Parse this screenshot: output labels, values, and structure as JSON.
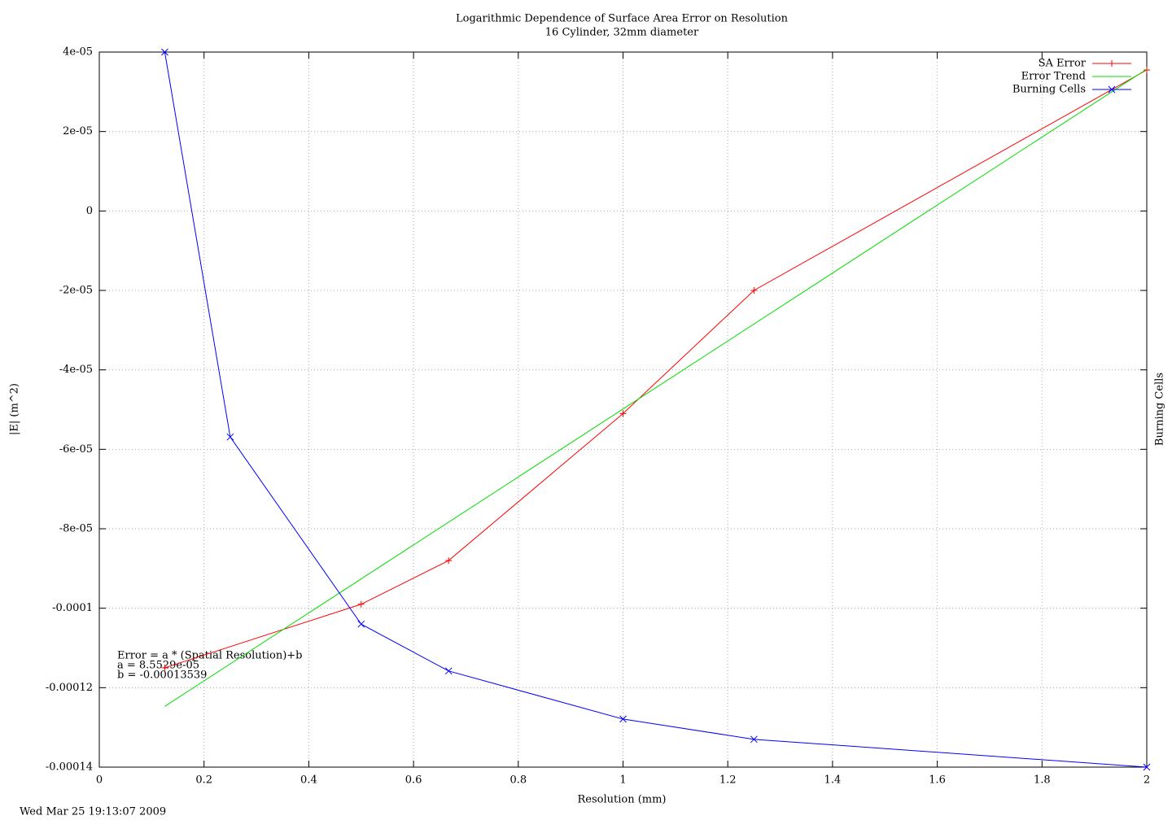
{
  "chart_data": {
    "type": "line",
    "title": "Logarithmic Dependence of Surface Area Error on Resolution",
    "subtitle": "16 Cylinder, 32mm diameter",
    "xlabel": "Resolution (mm)",
    "ylabel": "|E| (m^2)",
    "y2label": "Burning Cells",
    "annotations": [
      "Error = a * (Spatial Resolution)+b",
      "a = 8.5529e-05",
      "b = -0.00013539"
    ],
    "timestamp": "Wed Mar 25 19:13:07 2009",
    "xlim": [
      0,
      2
    ],
    "xticks": [
      0,
      0.2,
      0.4,
      0.6,
      0.8,
      1,
      1.2,
      1.4,
      1.6,
      1.8,
      2
    ],
    "ylim": [
      -0.00014,
      4e-05
    ],
    "yticks": [
      {
        "value": 4e-05,
        "label": "4e-05"
      },
      {
        "value": 2e-05,
        "label": "2e-05"
      },
      0,
      {
        "value": -2e-05,
        "label": "-2e-05"
      },
      {
        "value": -4e-05,
        "label": "-4e-05"
      },
      {
        "value": -6e-05,
        "label": "-6e-05"
      },
      {
        "value": -8e-05,
        "label": "-8e-05"
      },
      -0.0001,
      -0.00012,
      -0.00014
    ],
    "grid": true,
    "legend": "top-right",
    "series": [
      {
        "name": "SA Error",
        "color": "#ff0000",
        "marker": "plus",
        "x": [
          0.125,
          0.5,
          0.667,
          1,
          1.25,
          2
        ],
        "values": [
          -0.000115,
          -9.9e-05,
          -8.8e-05,
          -5.1e-05,
          -2e-05,
          3.55e-05
        ]
      },
      {
        "name": "Error Trend",
        "color": "#00dd00",
        "marker": "none",
        "x": [
          0.125,
          2
        ],
        "values": [
          -0.0001247,
          3.57e-05
        ]
      },
      {
        "name": "Burning Cells",
        "color": "#0000ff",
        "marker": "cross",
        "x": [
          0.125,
          0.25,
          0.5,
          0.667,
          1,
          1.25,
          2
        ],
        "values": [
          4e-05,
          -5.69e-05,
          -0.000104,
          -0.0001158,
          -0.0001279,
          -0.000133,
          -0.00014
        ]
      }
    ]
  }
}
